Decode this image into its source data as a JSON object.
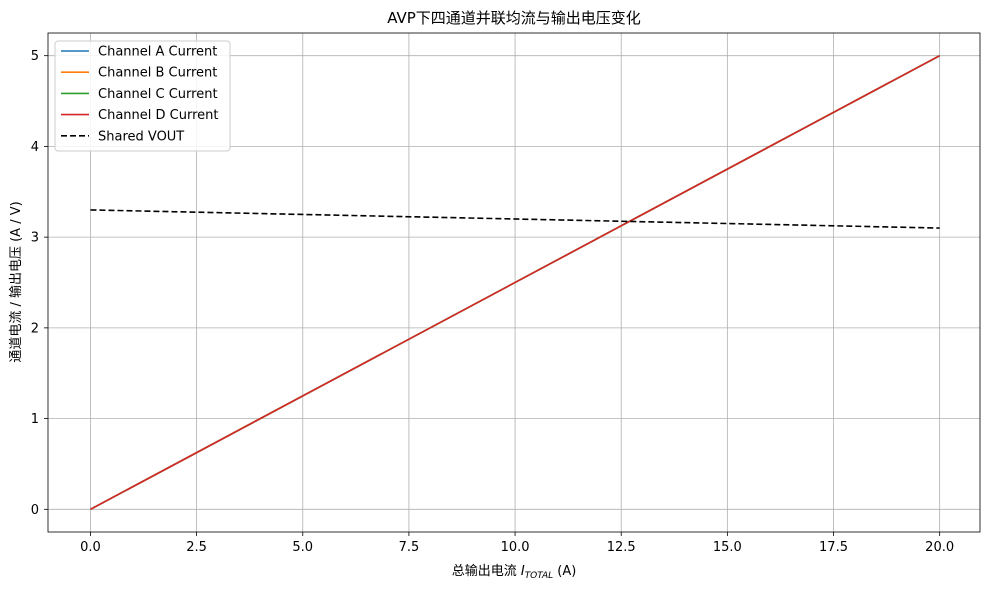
{
  "chart_data": {
    "type": "line",
    "title": "AVP下四通道并联均流与输出电压变化",
    "xlabel": "总输出电流 ",
    "xlabel_italic": "I",
    "xlabel_sub": "TOTAL",
    "xlabel_unit": " (A)",
    "ylabel": "通道电流 / 输出电压 (A / V)",
    "xlim": [
      -1,
      20.95
    ],
    "ylim": [
      -0.25,
      5.25
    ],
    "xticks": [
      0.0,
      2.5,
      5.0,
      7.5,
      10.0,
      12.5,
      15.0,
      17.5,
      20.0
    ],
    "xtick_labels": [
      "0.0",
      "2.5",
      "5.0",
      "7.5",
      "10.0",
      "12.5",
      "15.0",
      "17.5",
      "20.0"
    ],
    "yticks": [
      0,
      1,
      2,
      3,
      4,
      5
    ],
    "ytick_labels": [
      "0",
      "1",
      "2",
      "3",
      "4",
      "5"
    ],
    "grid": true,
    "legend_position": "upper-left",
    "series": [
      {
        "name": "Channel A Current",
        "color": "#1f77b4",
        "style": "solid",
        "x": [
          0,
          20
        ],
        "y": [
          0,
          5
        ]
      },
      {
        "name": "Channel B Current",
        "color": "#ff7f0e",
        "style": "solid",
        "x": [
          0,
          20
        ],
        "y": [
          0,
          5
        ]
      },
      {
        "name": "Channel C Current",
        "color": "#2ca02c",
        "style": "solid",
        "x": [
          0,
          20
        ],
        "y": [
          0,
          5
        ]
      },
      {
        "name": "Channel D Current",
        "color": "#d62728",
        "style": "solid",
        "x": [
          0,
          20
        ],
        "y": [
          0,
          5
        ]
      },
      {
        "name": "Shared VOUT",
        "color": "#000000",
        "style": "dashed",
        "x": [
          0,
          20
        ],
        "y": [
          3.3,
          3.1
        ]
      }
    ]
  }
}
